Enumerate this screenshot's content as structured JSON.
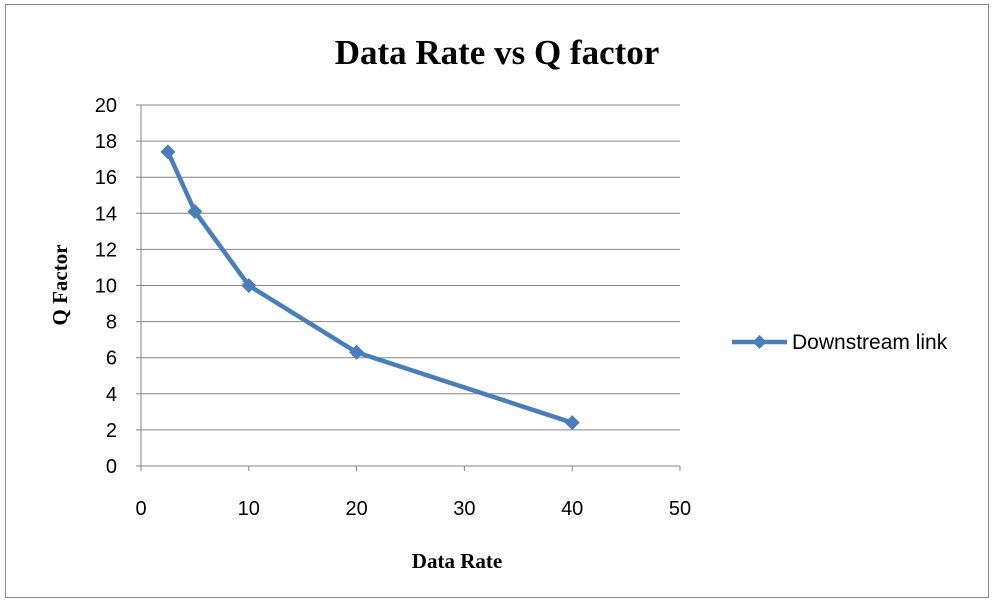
{
  "chart_data": {
    "type": "line",
    "title": "Data Rate vs Q factor",
    "xlabel": "Data Rate",
    "ylabel": "Q Factor",
    "xlim": [
      0,
      50
    ],
    "ylim": [
      0,
      20
    ],
    "x_ticks": [
      "0",
      "10",
      "20",
      "30",
      "40",
      "50"
    ],
    "y_ticks": [
      "0",
      "2",
      "4",
      "6",
      "8",
      "10",
      "12",
      "14",
      "16",
      "18",
      "20"
    ],
    "grid": "horizontal",
    "legend_position": "right",
    "series": [
      {
        "name": "Downstream link",
        "color": "#4a7ebb",
        "marker": "diamond",
        "x": [
          2.5,
          5,
          10,
          20,
          40
        ],
        "y": [
          17.4,
          14.1,
          10.0,
          6.3,
          2.4
        ]
      }
    ]
  }
}
